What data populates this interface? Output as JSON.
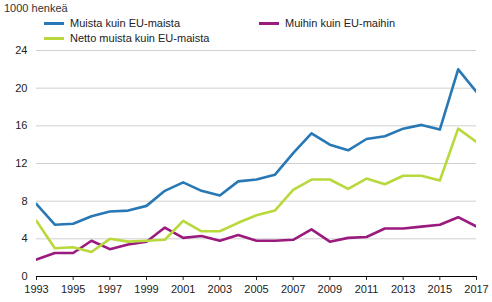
{
  "chart_data": {
    "type": "line",
    "y_label": "1000 henkeä",
    "x": [
      1993,
      1994,
      1995,
      1996,
      1997,
      1998,
      1999,
      2000,
      2001,
      2002,
      2003,
      2004,
      2005,
      2006,
      2007,
      2008,
      2009,
      2010,
      2011,
      2012,
      2013,
      2014,
      2015,
      2016,
      2017
    ],
    "series": [
      {
        "name": "Muista kuin EU-maista",
        "color": "#2878b5",
        "values": [
          7.7,
          5.5,
          5.6,
          6.4,
          6.9,
          7.0,
          7.5,
          9.1,
          10.0,
          9.1,
          8.6,
          10.1,
          10.3,
          10.8,
          13.1,
          15.2,
          14.0,
          13.4,
          14.6,
          14.9,
          15.7,
          16.1,
          15.6,
          22.0,
          19.6
        ]
      },
      {
        "name": "Muihin kuin EU-maihin",
        "color": "#9b1a7e",
        "values": [
          1.8,
          2.5,
          2.5,
          3.8,
          2.9,
          3.4,
          3.7,
          5.2,
          4.1,
          4.3,
          3.8,
          4.4,
          3.8,
          3.8,
          3.9,
          5.0,
          3.7,
          4.1,
          4.2,
          5.1,
          5.1,
          5.3,
          5.5,
          6.3,
          5.3
        ]
      },
      {
        "name": "Netto muista kuin EU-maista",
        "color": "#b8d93b",
        "values": [
          5.9,
          3.0,
          3.1,
          2.6,
          4.0,
          3.7,
          3.8,
          3.9,
          5.9,
          4.8,
          4.8,
          5.7,
          6.5,
          7.0,
          9.2,
          10.3,
          10.3,
          9.3,
          10.4,
          9.8,
          10.7,
          10.7,
          10.2,
          15.7,
          14.3
        ]
      }
    ],
    "xlim": [
      1993,
      2017
    ],
    "xticks": [
      1993,
      1995,
      1997,
      1999,
      2001,
      2003,
      2005,
      2007,
      2009,
      2011,
      2013,
      2015,
      2017
    ],
    "ylim": [
      0,
      24
    ],
    "yticks": [
      0,
      4,
      8,
      12,
      16,
      20,
      24
    ],
    "grid": true,
    "legend": "top"
  }
}
